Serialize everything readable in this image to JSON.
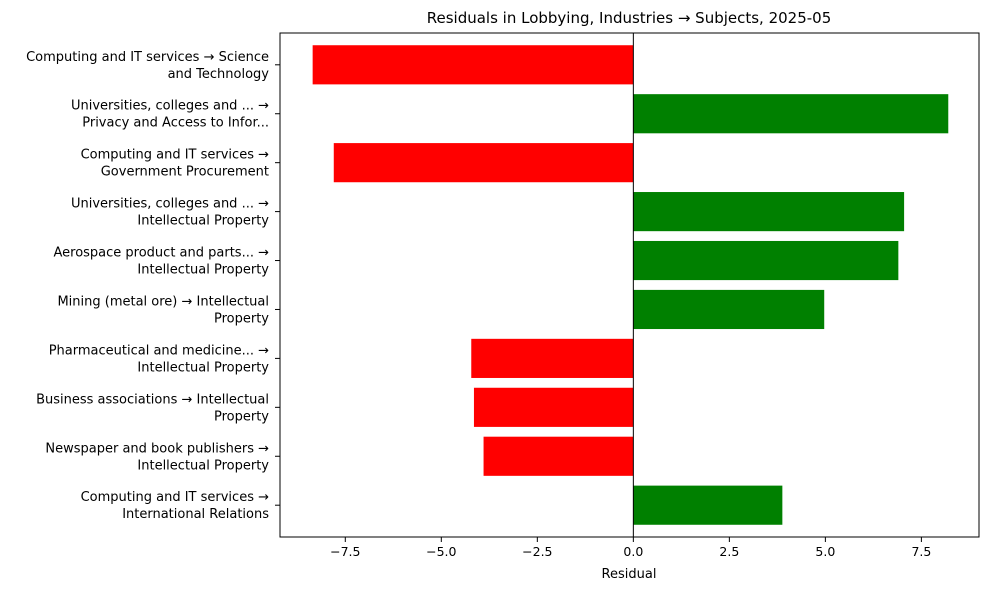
{
  "chart_data": {
    "type": "bar",
    "orientation": "horizontal",
    "title": "Residuals in Lobbying, Industries → Subjects, 2025-05",
    "xlabel": "Residual",
    "ylabel": "",
    "xlim": [
      -9.2,
      9.0
    ],
    "xticks": [
      -7.5,
      -5.0,
      -2.5,
      0.0,
      2.5,
      5.0,
      7.5
    ],
    "xtick_labels": [
      "−7.5",
      "−5.0",
      "−2.5",
      "0.0",
      "2.5",
      "5.0",
      "7.5"
    ],
    "grid": false,
    "positive_color": "#008000",
    "negative_color": "#ff0000",
    "bars": [
      {
        "label_lines": [
          "Computing and IT services → Science",
          "and Technology"
        ],
        "value": -8.35
      },
      {
        "label_lines": [
          "Universities, colleges and ... →",
          "Privacy and Access to Infor..."
        ],
        "value": 8.2
      },
      {
        "label_lines": [
          "Computing and IT services →",
          "Government Procurement"
        ],
        "value": -7.8
      },
      {
        "label_lines": [
          "Universities, colleges and ... →",
          "Intellectual Property"
        ],
        "value": 7.05
      },
      {
        "label_lines": [
          "Aerospace product and parts... →",
          "Intellectual Property"
        ],
        "value": 6.9
      },
      {
        "label_lines": [
          "Mining (metal ore) → Intellectual",
          "Property"
        ],
        "value": 4.97
      },
      {
        "label_lines": [
          "Pharmaceutical and medicine... →",
          "Intellectual Property"
        ],
        "value": -4.22
      },
      {
        "label_lines": [
          "Business associations → Intellectual",
          "Property"
        ],
        "value": -4.15
      },
      {
        "label_lines": [
          "Newspaper and book publishers →",
          "Intellectual Property"
        ],
        "value": -3.9
      },
      {
        "label_lines": [
          "Computing and IT services →",
          "International Relations"
        ],
        "value": 3.88
      }
    ]
  }
}
